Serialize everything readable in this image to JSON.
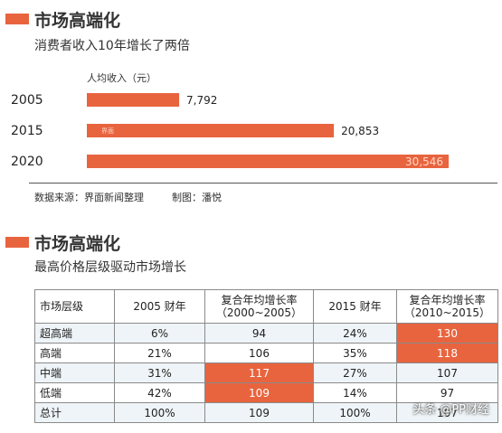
{
  "section1": {
    "title": "市场高端化",
    "subtitle": "消费者收入10年增长了两倍"
  },
  "chart_data": {
    "type": "bar",
    "orientation": "horizontal",
    "series_label": "人均收入（元）",
    "categories": [
      "2005",
      "2015",
      "2020"
    ],
    "values": [
      7792,
      20853,
      30546
    ],
    "value_labels": [
      "7,792",
      "20,853",
      "30,546"
    ],
    "xlim": [
      0,
      31000
    ],
    "grid": false,
    "bar_color": "#e8643f"
  },
  "source": {
    "data_source": "数据来源：界面新闻整理",
    "maker": "制图：潘悦"
  },
  "section2": {
    "title": "市场高端化",
    "subtitle": "最高价格层级驱动市场增长"
  },
  "table": {
    "headers": [
      "市场层级",
      "2005 财年",
      "复合年均增长率\n（2000~2005）",
      "2015 财年",
      "复合年均增长率\n（2010~2015）"
    ],
    "rows": [
      {
        "cells": [
          "超高端",
          "6%",
          "94",
          "24%",
          "130"
        ],
        "highlight": [
          4
        ]
      },
      {
        "cells": [
          "高端",
          "21%",
          "106",
          "35%",
          "118"
        ],
        "highlight": [
          4
        ]
      },
      {
        "cells": [
          "中端",
          "31%",
          "117",
          "27%",
          "107"
        ],
        "highlight": [
          2
        ]
      },
      {
        "cells": [
          "低端",
          "42%",
          "109",
          "14%",
          "97"
        ],
        "highlight": [
          2
        ]
      },
      {
        "cells": [
          "总计",
          "100%",
          "109",
          "100%",
          "107"
        ],
        "highlight": []
      }
    ],
    "highlight_color": "#e8643f"
  },
  "watermark": {
    "credit": "头条 @PP财经",
    "stamp": "界面"
  }
}
